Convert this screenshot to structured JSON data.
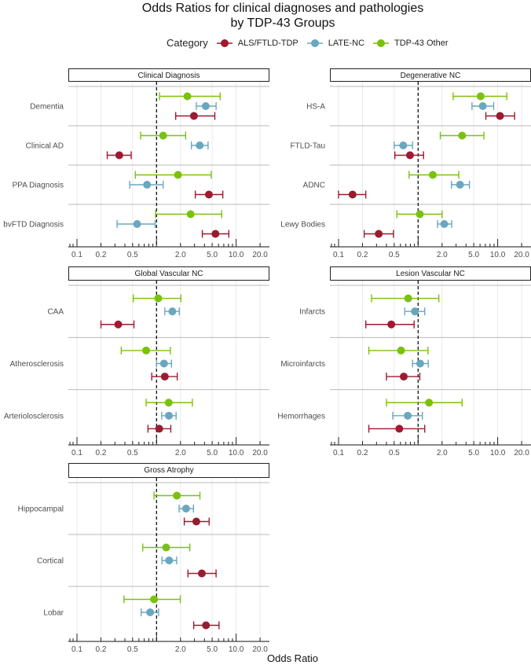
{
  "chart_data": {
    "type": "forest",
    "title": "Odds Ratios for clinical diagnoses and pathologies",
    "subtitle": "by TDP-43 Groups",
    "xlabel": "Odds Ratio",
    "x_scale": "log10",
    "xlim": [
      0.09,
      25
    ],
    "reference_line": 1,
    "x_ticks": [
      0.1,
      0.2,
      0.5,
      2.0,
      5.0,
      10.0,
      20.0
    ],
    "x_tick_labels": [
      "0.1",
      "0.2",
      "0.5",
      "2.0",
      "5.0",
      "10.0",
      "20.0"
    ],
    "legend": {
      "title": "Category",
      "placement": "top",
      "entries": [
        "ALS/FTLD-TDP",
        "LATE-NC",
        "TDP-43 Other"
      ]
    },
    "colors": {
      "ALS/FTLD-TDP": "#9b1b30",
      "LATE-NC": "#6aa7bf",
      "TDP-43 Other": "#7ac10f"
    },
    "panels": [
      {
        "title": "Clinical Diagnosis",
        "rows": [
          {
            "label": "Dementia",
            "TDP-43 Other": [
              2.44,
              1.09,
              6.3
            ],
            "LATE-NC": [
              4.15,
              3.16,
              5.6
            ],
            "ALS/FTLD-TDP": [
              2.95,
              1.74,
              5.4
            ]
          },
          {
            "label": "Clinical AD",
            "TDP-43 Other": [
              1.21,
              0.63,
              2.32
            ],
            "LATE-NC": [
              3.49,
              2.74,
              4.44
            ],
            "ALS/FTLD-TDP": [
              0.34,
              0.24,
              0.48
            ]
          },
          {
            "label": "PPA Diagnosis",
            "TDP-43 Other": [
              1.86,
              0.54,
              4.87
            ],
            "LATE-NC": [
              0.76,
              0.46,
              1.21
            ],
            "ALS/FTLD-TDP": [
              4.55,
              3.07,
              6.8
            ]
          },
          {
            "label": "bvFTD Diagnosis",
            "TDP-43 Other": [
              2.68,
              0.97,
              6.6
            ],
            "LATE-NC": [
              0.57,
              0.32,
              0.96
            ],
            "ALS/FTLD-TDP": [
              5.5,
              3.76,
              8.1
            ]
          }
        ]
      },
      {
        "title": "Degenerative NC",
        "rows": [
          {
            "label": "HS-A",
            "TDP-43 Other": [
              6.1,
              2.76,
              13.0
            ],
            "LATE-NC": [
              6.5,
              4.75,
              8.9
            ],
            "ALS/FTLD-TDP": [
              10.7,
              7.1,
              16.3
            ]
          },
          {
            "label": "FTLD-Tau",
            "TDP-43 Other": [
              3.57,
              1.9,
              6.7
            ],
            "LATE-NC": [
              0.65,
              0.5,
              0.85
            ],
            "ALS/FTLD-TDP": [
              0.79,
              0.51,
              1.17
            ]
          },
          {
            "label": "ADNC",
            "TDP-43 Other": [
              1.53,
              0.77,
              3.24
            ],
            "LATE-NC": [
              3.36,
              2.62,
              4.41
            ],
            "ALS/FTLD-TDP": [
              0.15,
              0.1,
              0.22
            ]
          },
          {
            "label": "Lewy Bodies",
            "TDP-43 Other": [
              1.05,
              0.54,
              2.0
            ],
            "LATE-NC": [
              2.13,
              1.75,
              2.64
            ],
            "ALS/FTLD-TDP": [
              0.32,
              0.21,
              0.49
            ]
          }
        ]
      },
      {
        "title": "Global Vascular NC",
        "rows": [
          {
            "label": "CAA",
            "TDP-43 Other": [
              1.05,
              0.51,
              2.02
            ],
            "LATE-NC": [
              1.58,
              1.27,
              1.93
            ],
            "ALS/FTLD-TDP": [
              0.33,
              0.2,
              0.52
            ]
          },
          {
            "label": "Atherosclerosis",
            "TDP-43 Other": [
              0.74,
              0.36,
              1.49
            ],
            "LATE-NC": [
              1.24,
              1.0,
              1.54
            ],
            "ALS/FTLD-TDP": [
              1.27,
              0.87,
              1.82
            ]
          },
          {
            "label": "Arteriolosclerosis",
            "TDP-43 Other": [
              1.42,
              0.74,
              2.82
            ],
            "LATE-NC": [
              1.43,
              1.16,
              1.76
            ],
            "ALS/FTLD-TDP": [
              1.08,
              0.78,
              1.51
            ]
          }
        ]
      },
      {
        "title": "Lesion Vascular NC",
        "rows": [
          {
            "label": "Infarcts",
            "TDP-43 Other": [
              0.75,
              0.26,
              1.82
            ],
            "LATE-NC": [
              0.91,
              0.68,
              1.21
            ],
            "ALS/FTLD-TDP": [
              0.46,
              0.22,
              0.89
            ]
          },
          {
            "label": "Microinfarcts",
            "TDP-43 Other": [
              0.61,
              0.24,
              1.33
            ],
            "LATE-NC": [
              1.06,
              0.85,
              1.34
            ],
            "ALS/FTLD-TDP": [
              0.66,
              0.4,
              1.05
            ]
          },
          {
            "label": "Hemorrhages",
            "TDP-43 Other": [
              1.37,
              0.4,
              3.57
            ],
            "LATE-NC": [
              0.74,
              0.48,
              1.13
            ],
            "ALS/FTLD-TDP": [
              0.58,
              0.24,
              1.21
            ]
          }
        ]
      },
      {
        "title": "Gross Atrophy",
        "rows": [
          {
            "label": "Hippocampal",
            "TDP-43 Other": [
              1.8,
              0.93,
              3.51
            ],
            "LATE-NC": [
              2.35,
              1.92,
              2.91
            ],
            "ALS/FTLD-TDP": [
              3.16,
              2.23,
              4.58
            ]
          },
          {
            "label": "Cortical",
            "TDP-43 Other": [
              1.32,
              0.67,
              2.62
            ],
            "LATE-NC": [
              1.44,
              1.17,
              1.79
            ],
            "ALS/FTLD-TDP": [
              3.71,
              2.48,
              5.6
            ]
          },
          {
            "label": "Lobar",
            "TDP-43 Other": [
              0.93,
              0.39,
              1.99
            ],
            "LATE-NC": [
              0.83,
              0.64,
              1.06
            ],
            "ALS/FTLD-TDP": [
              4.18,
              2.93,
              6.1
            ]
          }
        ]
      }
    ]
  }
}
